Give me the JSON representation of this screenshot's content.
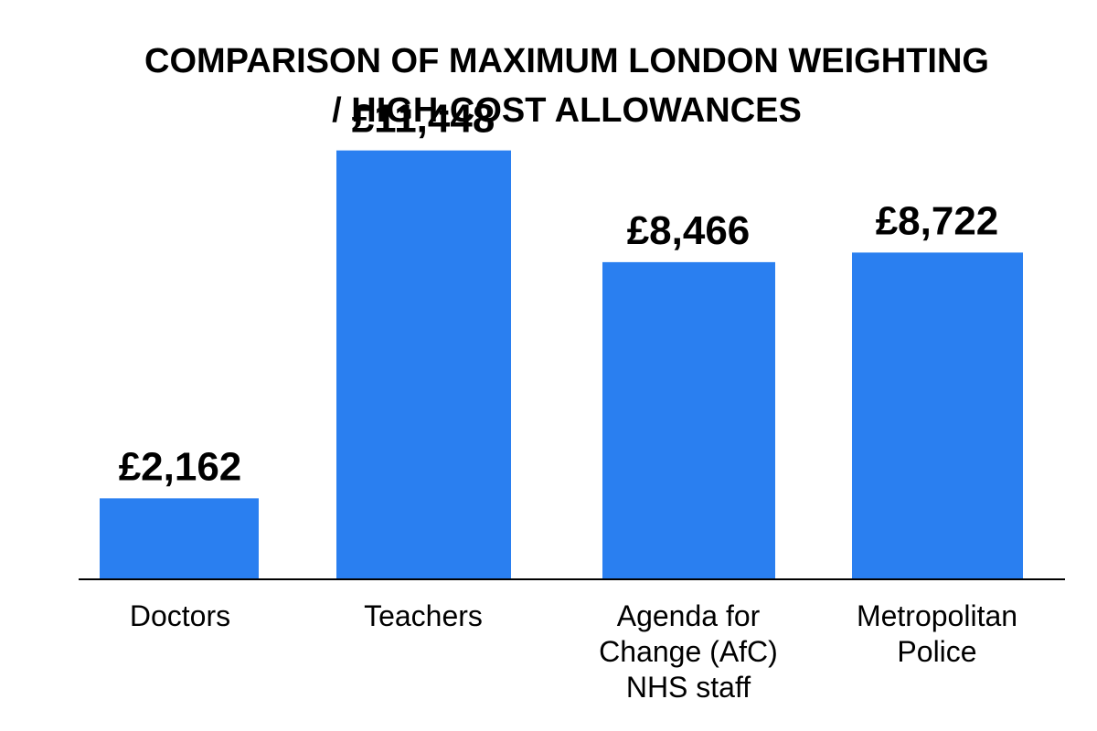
{
  "chart_data": {
    "type": "bar",
    "title": "COMPARISON OF MAXIMUM LONDON WEIGHTING\n/ HIGH-COST ALLOWANCES",
    "categories": [
      "Doctors",
      "Teachers",
      "Agenda for Change (AfC) NHS staff",
      "Metropolitan Police"
    ],
    "category_lines": [
      [
        "Doctors"
      ],
      [
        "Teachers"
      ],
      [
        "Agenda for",
        "Change (AfC)",
        "NHS staff"
      ],
      [
        "Metropolitan",
        "Police"
      ]
    ],
    "values": [
      2162,
      11448,
      8466,
      8722
    ],
    "value_labels": [
      "£2,162",
      "£11,448",
      "£8,466",
      "£8,722"
    ],
    "ylim": [
      0,
      12000
    ],
    "bar_color": "#2a7ff0",
    "axis_color": "#000000",
    "grid": false,
    "xlabel": "",
    "ylabel": ""
  }
}
